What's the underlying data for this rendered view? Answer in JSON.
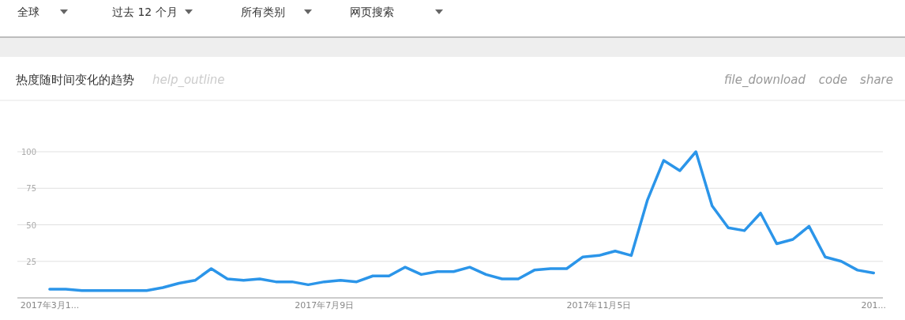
{
  "chart_data": {
    "type": "line",
    "title": "热度随时间变化的趋势",
    "annotations": [
      "全球",
      "过去 12 个月",
      "所有类别",
      "网页搜索",
      "help_outline",
      "file_download",
      "code",
      "share"
    ],
    "x": [
      "2017-03-12",
      "2017-03-19",
      "2017-03-26",
      "2017-04-02",
      "2017-04-09",
      "2017-04-16",
      "2017-04-23",
      "2017-04-30",
      "2017-05-07",
      "2017-05-14",
      "2017-05-21",
      "2017-05-28",
      "2017-06-04",
      "2017-06-11",
      "2017-06-18",
      "2017-06-25",
      "2017-07-02",
      "2017-07-09",
      "2017-07-16",
      "2017-07-23",
      "2017-07-30",
      "2017-08-06",
      "2017-08-13",
      "2017-08-20",
      "2017-08-27",
      "2017-09-03",
      "2017-09-10",
      "2017-09-17",
      "2017-09-24",
      "2017-10-01",
      "2017-10-08",
      "2017-10-15",
      "2017-10-22",
      "2017-10-29",
      "2017-11-05",
      "2017-11-12",
      "2017-11-19",
      "2017-11-26",
      "2017-12-03",
      "2017-12-10",
      "2017-12-17",
      "2017-12-24",
      "2017-12-31",
      "2018-01-07",
      "2018-01-14",
      "2018-01-21",
      "2018-01-28",
      "2018-02-04",
      "2018-02-11",
      "2018-02-18",
      "2018-02-25",
      "2018-03-04"
    ],
    "series": [
      {
        "color": "#2b95e9",
        "values": [
          6,
          6,
          5,
          5,
          5,
          5,
          5,
          7,
          10,
          12,
          20,
          13,
          12,
          13,
          11,
          11,
          9,
          11,
          12,
          11,
          15,
          15,
          21,
          16,
          18,
          18,
          21,
          16,
          13,
          13,
          19,
          20,
          20,
          28,
          29,
          32,
          29,
          67,
          94,
          87,
          100,
          63,
          48,
          46,
          58,
          37,
          40,
          49,
          28,
          25,
          19,
          17
        ]
      }
    ],
    "xlim": [
      "2017-02-26",
      "2018-03-08"
    ],
    "xticks": [
      {
        "value": "2017-03-12",
        "label": "2017年3月1..."
      },
      {
        "value": "2017-07-09",
        "label": "2017年7月9日"
      },
      {
        "value": "2017-11-05",
        "label": "2017年11月5日"
      },
      {
        "value": "2018-03-04",
        "label": "201..."
      }
    ],
    "ylim": [
      0,
      100
    ],
    "yticks": [
      25,
      50,
      75,
      100
    ],
    "grid": "y",
    "line_style": "solid",
    "marker": "none"
  }
}
